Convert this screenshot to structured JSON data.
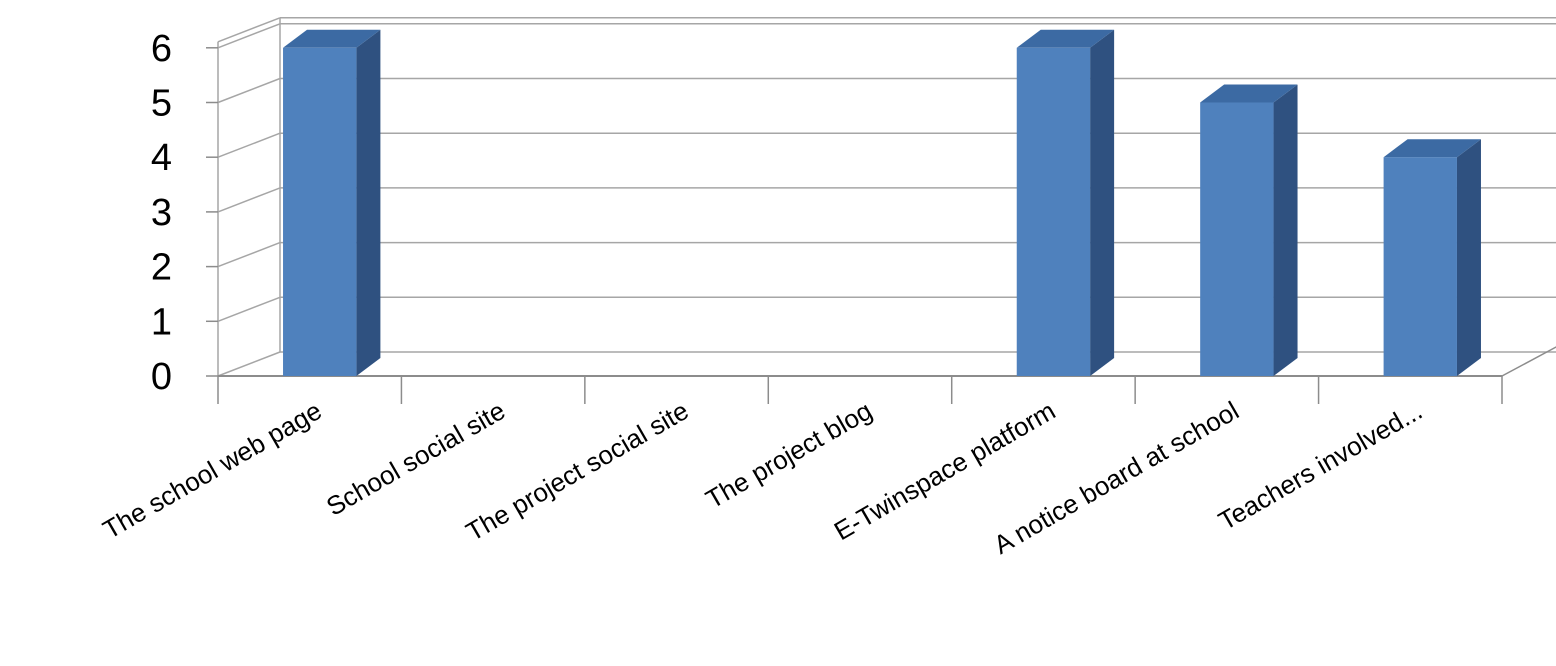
{
  "chart_data": {
    "type": "bar",
    "categories": [
      "The school web page",
      "School social site",
      "The project social site",
      "The project blog",
      "E-Twinspace platform",
      "A notice board at school",
      "Teachers involved..."
    ],
    "values": [
      6,
      0,
      0,
      0,
      6,
      5,
      4
    ],
    "ylim": [
      0,
      6
    ],
    "y_ticks": [
      "0",
      "1",
      "2",
      "3",
      "4",
      "5",
      "6"
    ],
    "grid": true,
    "style": "3d-column"
  },
  "colors": {
    "bar_front": "#4f81bd",
    "bar_side": "#2f5180",
    "bar_top": "#3c6aa3",
    "grid": "#a6a6a6",
    "axis": "#8c8c8c",
    "text": "#000000"
  }
}
